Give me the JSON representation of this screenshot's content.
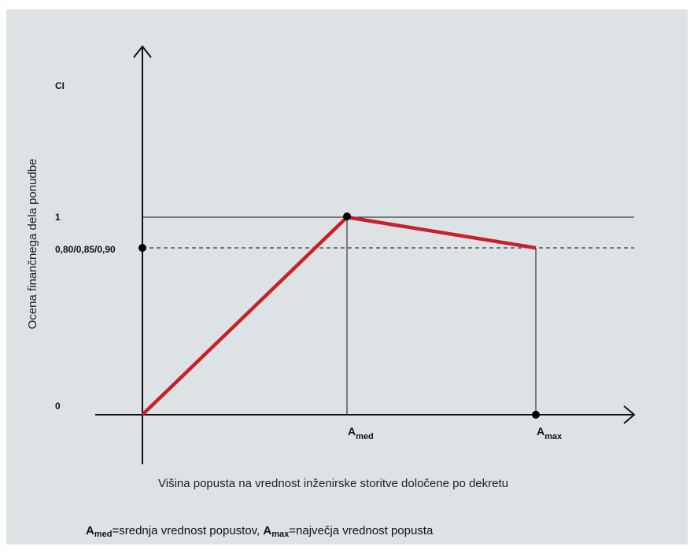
{
  "diagram": {
    "y_unit_label": "CI",
    "y_axis_title": "Ocena finančnega dela ponudbe",
    "x_axis_title": "Višina popusta na vrednost inženirske storitve določene po dekretu",
    "y_ticks": {
      "top": "1",
      "mid": "0,80/0,85/0,90",
      "zero": "0"
    },
    "x_ticks": {
      "med": {
        "main": "A",
        "sub": "med"
      },
      "max": {
        "main": "A",
        "sub": "max"
      }
    },
    "legend": {
      "med_symbol": "A",
      "med_sub": "med",
      "med_text": "=srednja vrednost popustov, ",
      "max_symbol": "A",
      "max_sub": "max",
      "max_text": "=največja vrednost popusta"
    },
    "colors": {
      "score_line": "#c8202b",
      "axes": "#111111",
      "background": "#dde3e4"
    }
  }
}
